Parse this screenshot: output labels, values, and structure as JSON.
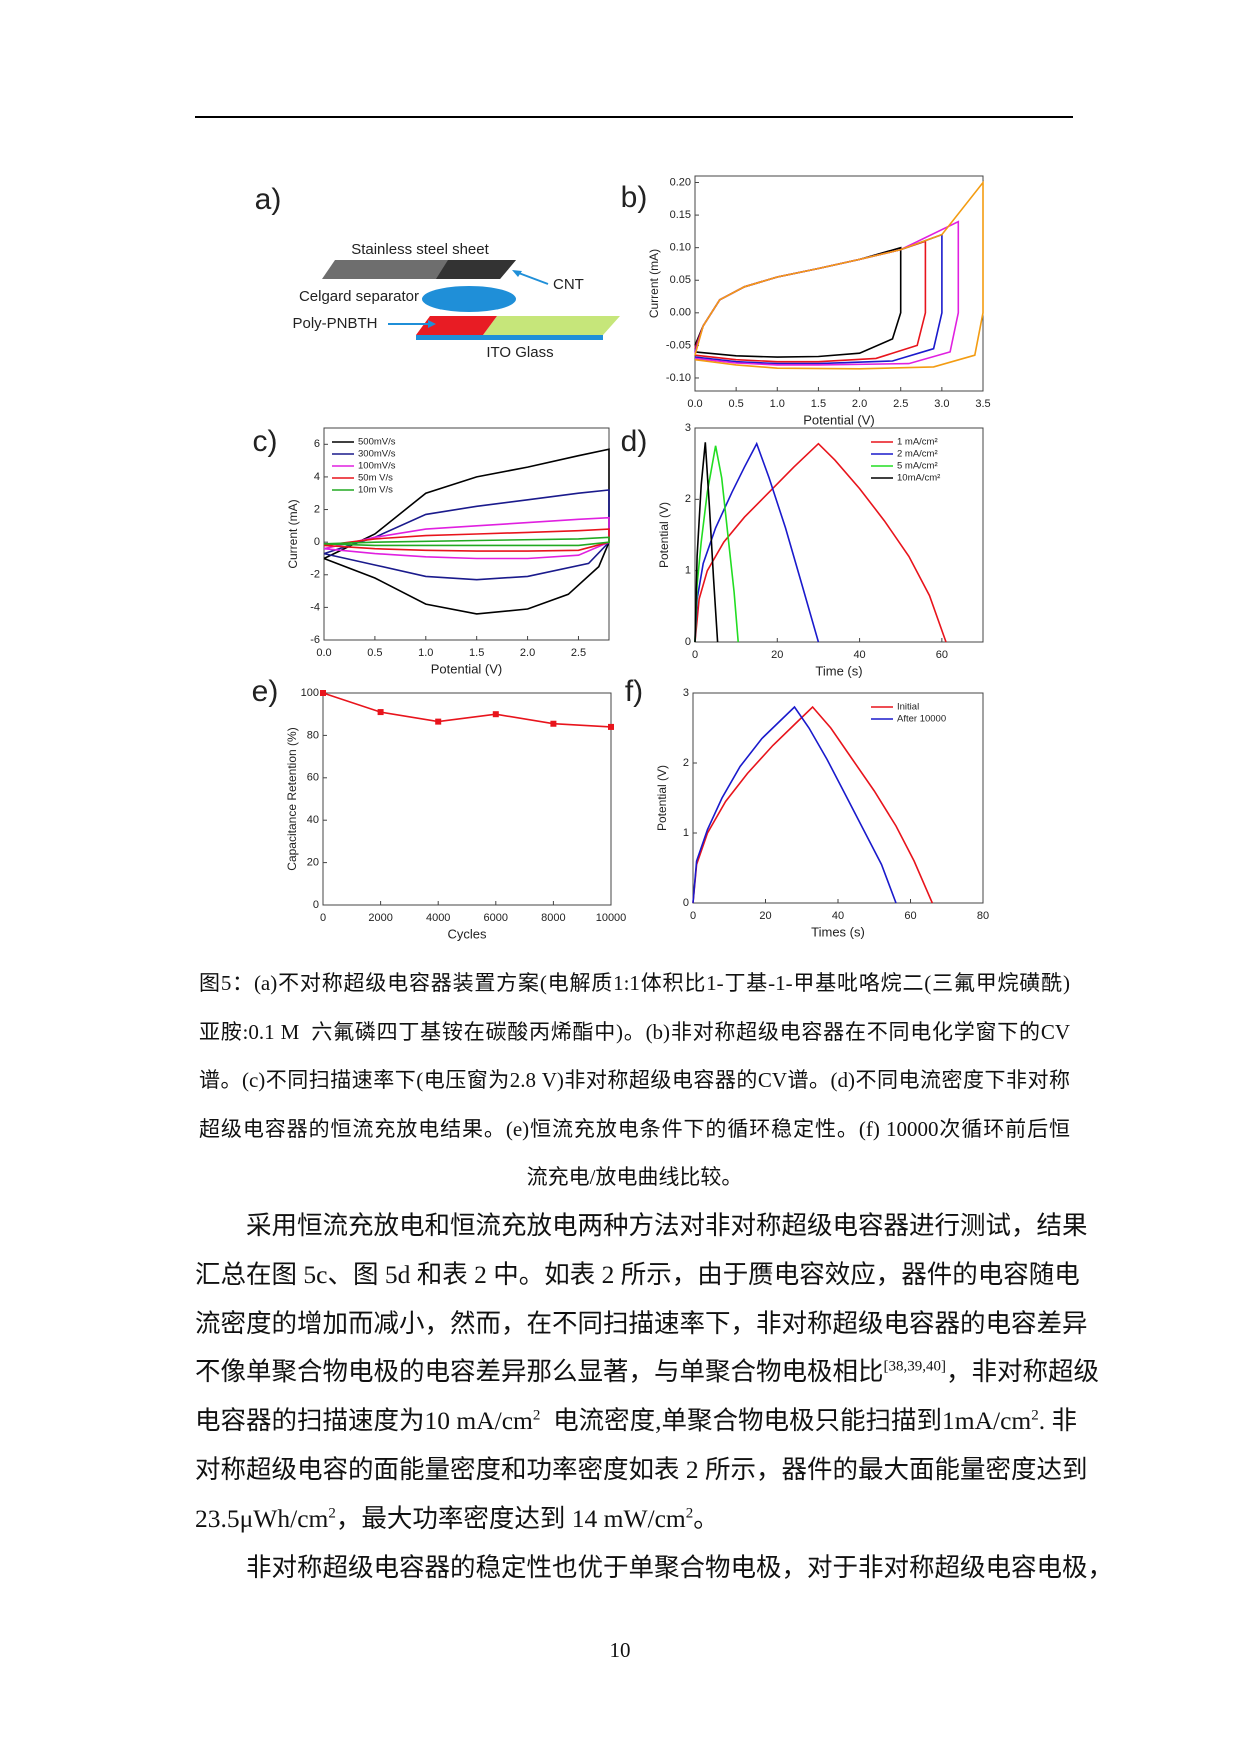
{
  "figure": {
    "panels": [
      {
        "label": "a)",
        "parts": [
          "Stainless steel sheet",
          "CNT",
          "Celgard separator",
          "Poly-PNBTH",
          "ITO Glass"
        ]
      },
      {
        "label": "b)",
        "type": "line",
        "xlabel": "Potential (V)",
        "ylabel": "Current (mA)",
        "xlim": [
          0,
          3.5
        ],
        "ylim": [
          -0.12,
          0.21
        ],
        "xticks": [
          {
            "value": 0,
            "label": "0.0"
          },
          0.5,
          {
            "value": 1,
            "label": "1.0"
          },
          1.5,
          {
            "value": 2,
            "label": "2.0"
          },
          2.5,
          {
            "value": 3,
            "label": "3.0"
          },
          3.5
        ],
        "yticks": [
          {
            "value": -0.1,
            "label": "-0.10"
          },
          {
            "value": -0.05,
            "label": "-0.05"
          },
          {
            "value": 0,
            "label": "0.00"
          },
          {
            "value": 0.05,
            "label": "0.05"
          },
          {
            "value": 0.1,
            "label": "0.10"
          },
          {
            "value": 0.15,
            "label": "0.15"
          },
          {
            "value": 0.2,
            "label": "0.20"
          }
        ],
        "series": [
          {
            "color": "#000000",
            "x": [
              0,
              0.1,
              0.3,
              0.6,
              1.0,
              1.5,
              2.0,
              2.5,
              2.5,
              2.4,
              2.0,
              1.5,
              1.0,
              0.5,
              0
            ],
            "values": [
              -0.05,
              -0.02,
              0.02,
              0.04,
              0.055,
              0.068,
              0.082,
              0.1,
              0.0,
              -0.04,
              -0.062,
              -0.067,
              -0.068,
              -0.066,
              -0.06
            ]
          },
          {
            "color": "#e8141c",
            "x": [
              0,
              0.1,
              0.3,
              0.6,
              1.0,
              1.5,
              2.0,
              2.5,
              2.8,
              2.8,
              2.7,
              2.2,
              1.5,
              1.0,
              0.5,
              0
            ],
            "values": [
              -0.055,
              -0.02,
              0.02,
              0.04,
              0.055,
              0.068,
              0.082,
              0.097,
              0.11,
              0.0,
              -0.05,
              -0.07,
              -0.075,
              -0.075,
              -0.072,
              -0.065
            ]
          },
          {
            "color": "#1a1acc",
            "x": [
              0,
              0.1,
              0.3,
              0.6,
              1.0,
              1.5,
              2.0,
              2.5,
              3.0,
              3.0,
              2.9,
              2.4,
              1.5,
              1.0,
              0.5,
              0
            ],
            "values": [
              -0.06,
              -0.02,
              0.02,
              0.04,
              0.055,
              0.068,
              0.082,
              0.097,
              0.12,
              0.0,
              -0.055,
              -0.074,
              -0.078,
              -0.078,
              -0.075,
              -0.068
            ]
          },
          {
            "color": "#e020e0",
            "x": [
              0,
              0.1,
              0.3,
              0.6,
              1.0,
              1.5,
              2.0,
              2.5,
              3.2,
              3.2,
              3.1,
              2.6,
              1.5,
              1.0,
              0.5,
              0
            ],
            "values": [
              -0.062,
              -0.02,
              0.02,
              0.04,
              0.055,
              0.068,
              0.082,
              0.097,
              0.14,
              0.0,
              -0.06,
              -0.078,
              -0.08,
              -0.08,
              -0.077,
              -0.07
            ]
          },
          {
            "color": "#f39c12",
            "x": [
              0,
              0.1,
              0.3,
              0.6,
              1.0,
              1.5,
              2.0,
              2.5,
              3.0,
              3.5,
              3.5,
              3.4,
              2.9,
              2.0,
              1.0,
              0.5,
              0
            ],
            "values": [
              -0.065,
              -0.02,
              0.02,
              0.04,
              0.055,
              0.068,
              0.082,
              0.097,
              0.12,
              0.2,
              0.0,
              -0.065,
              -0.083,
              -0.086,
              -0.085,
              -0.08,
              -0.072
            ]
          }
        ]
      },
      {
        "label": "c)",
        "type": "line",
        "xlabel": "Potential (V)",
        "ylabel": "Current  (mA)",
        "legend": "upper left",
        "xlim": [
          0,
          2.8
        ],
        "ylim": [
          -6,
          7
        ],
        "xticks": [
          {
            "value": 0,
            "label": "0.0"
          },
          0.5,
          {
            "value": 1,
            "label": "1.0"
          },
          1.5,
          {
            "value": 2,
            "label": "2.0"
          },
          2.5
        ],
        "yticks": [
          -6,
          -4,
          -2,
          0,
          2,
          4,
          6
        ],
        "series": [
          {
            "name": "500mV/s",
            "color": "#000000",
            "x": [
              0,
              0.5,
              1.0,
              1.5,
              2.0,
              2.5,
              2.8,
              2.8,
              2.7,
              2.4,
              2.0,
              1.5,
              1.0,
              0.5,
              0
            ],
            "values": [
              -1,
              0.5,
              3.0,
              4.0,
              4.6,
              5.3,
              5.7,
              0,
              -1.5,
              -3.2,
              -4.1,
              -4.4,
              -3.8,
              -2.2,
              -1
            ]
          },
          {
            "name": "300mV/s",
            "color": "#1a1a8c",
            "x": [
              0,
              0.5,
              1.0,
              1.5,
              2.0,
              2.5,
              2.8,
              2.8,
              2.6,
              2.0,
              1.5,
              1.0,
              0.5,
              0
            ],
            "values": [
              -0.7,
              0.3,
              1.7,
              2.2,
              2.6,
              3.0,
              3.2,
              0,
              -1.3,
              -2.1,
              -2.3,
              -2.1,
              -1.4,
              -0.7
            ]
          },
          {
            "name": "100mV/s",
            "color": "#e020e0",
            "x": [
              0,
              0.5,
              1.0,
              1.5,
              2.0,
              2.5,
              2.8,
              2.8,
              2.5,
              2.0,
              1.5,
              1.0,
              0.5,
              0
            ],
            "values": [
              -0.4,
              0.3,
              0.8,
              1.0,
              1.2,
              1.4,
              1.5,
              0,
              -0.8,
              -1.0,
              -1.0,
              -0.9,
              -0.7,
              -0.4
            ]
          },
          {
            "name": "50m V/s",
            "color": "#e8141c",
            "x": [
              0,
              0.5,
              1.0,
              1.5,
              2.0,
              2.5,
              2.8,
              2.8,
              2.5,
              2.0,
              1.5,
              1.0,
              0.5,
              0
            ],
            "values": [
              -0.2,
              0.2,
              0.4,
              0.5,
              0.6,
              0.7,
              0.8,
              0,
              -0.5,
              -0.55,
              -0.55,
              -0.5,
              -0.4,
              -0.2
            ]
          },
          {
            "name": "10m V/s",
            "color": "#22aa22",
            "x": [
              0,
              0.5,
              1.5,
              2.5,
              2.8,
              2.8,
              2.5,
              1.5,
              0.5,
              0
            ],
            "values": [
              -0.1,
              0.0,
              0.1,
              0.2,
              0.3,
              0,
              -0.2,
              -0.2,
              -0.2,
              -0.1
            ]
          }
        ]
      },
      {
        "label": "d)",
        "type": "line",
        "xlabel": "Time (s)",
        "ylabel": "Potential (V)",
        "legend": "upper right",
        "xlim": [
          0,
          70
        ],
        "ylim": [
          0,
          3
        ],
        "xticks": [
          0,
          20,
          40,
          60
        ],
        "yticks": [
          0,
          1,
          2,
          3
        ],
        "series": [
          {
            "name": "1 mA/cm²",
            "color": "#e8141c",
            "x": [
              0,
              1,
              3,
              7,
              12,
              18,
              24,
              30,
              34,
              40,
              46,
              52,
              57,
              61
            ],
            "values": [
              0,
              0.6,
              1.0,
              1.4,
              1.75,
              2.1,
              2.45,
              2.78,
              2.55,
              2.15,
              1.7,
              1.2,
              0.65,
              0
            ]
          },
          {
            "name": "2 mA/cm²",
            "color": "#1a1acc",
            "x": [
              0,
              0.5,
              2,
              5,
              9,
              12,
              15,
              18,
              22,
              26,
              30
            ],
            "values": [
              0,
              0.6,
              1.1,
              1.6,
              2.1,
              2.45,
              2.78,
              2.3,
              1.6,
              0.8,
              0
            ]
          },
          {
            "name": "5 mA/cm²",
            "color": "#22dd22",
            "x": [
              0,
              0.5,
              1.5,
              3,
              5,
              6.5,
              8,
              9.5,
              10.5
            ],
            "values": [
              0,
              0.8,
              1.4,
              2.1,
              2.75,
              2.3,
              1.5,
              0.7,
              0
            ]
          },
          {
            "name": "10mA/cm²",
            "color": "#000000",
            "x": [
              0,
              0.5,
              1.5,
              2.5,
              3.5,
              4.5,
              5.5
            ],
            "values": [
              0,
              1.2,
              2.2,
              2.8,
              1.9,
              0.9,
              0
            ]
          }
        ]
      },
      {
        "label": "e)",
        "type": "line",
        "markers": true,
        "xlabel": "Cycles",
        "ylabel": "Capacitance Retention (%)",
        "xlim": [
          0,
          10000
        ],
        "ylim": [
          0,
          100
        ],
        "xticks": [
          0,
          2000,
          4000,
          6000,
          8000,
          10000
        ],
        "yticks": [
          0,
          20,
          40,
          60,
          80,
          100
        ],
        "series": [
          {
            "color": "#e8141c",
            "x": [
              0,
              2000,
              4000,
              6000,
              8000,
              10000
            ],
            "values": [
              100,
              91,
              86.5,
              90,
              85.5,
              84
            ]
          }
        ]
      },
      {
        "label": "f)",
        "type": "line",
        "xlabel": "Times (s)",
        "ylabel": "Potential (V)",
        "legend": "upper right",
        "xlim": [
          0,
          80
        ],
        "ylim": [
          0,
          3
        ],
        "xticks": [
          0,
          20,
          40,
          60,
          80
        ],
        "yticks": [
          0,
          1,
          2,
          3
        ],
        "series": [
          {
            "name": "Initial",
            "color": "#e8141c",
            "x": [
              0,
              1,
              4,
              9,
              15,
              22,
              28,
              33,
              38,
              44,
              50,
              56,
              61,
              66
            ],
            "values": [
              0,
              0.55,
              1.0,
              1.45,
              1.85,
              2.25,
              2.55,
              2.8,
              2.5,
              2.05,
              1.6,
              1.1,
              0.6,
              0
            ]
          },
          {
            "name": "After 10000",
            "color": "#1a1acc",
            "x": [
              0,
              1,
              4,
              8,
              13,
              19,
              24,
              28,
              32,
              37,
              42,
              47,
              52,
              56
            ],
            "values": [
              0,
              0.6,
              1.05,
              1.5,
              1.95,
              2.35,
              2.6,
              2.8,
              2.5,
              2.05,
              1.55,
              1.05,
              0.55,
              0
            ]
          }
        ]
      }
    ]
  },
  "caption": [
    "图5：(a)不对称超级电容器装置方案(电解质1:1体积比1-丁基-1-甲基吡咯烷二(三氟甲烷磺酰)",
    "亚胺:0.1 M  六氟磷四丁基铵在碳酸丙烯酯中)。(b)非对称超级电容器在不同电化学窗下的CV",
    "谱。(c)不同扫描速率下(电压窗为2.8 V)非对称超级电容器的CV谱。(d)不同电流密度下非对称",
    "超级电容器的恒流充放电结果。(e)恒流充放电条件下的循环稳定性。(f) 10000次循环前后恒",
    "流充电/放电曲线比较。"
  ],
  "paragraphs": [
    [
      [
        {
          "text": "采用恒流充放电和恒流充放电两种方法对非对称超级电容器进行测试，结果"
        }
      ],
      [
        {
          "text": "汇总在图 5c、图 5d 和表 2 中。如表 2 所示，由于赝电容效应，器件的电容随电"
        }
      ],
      [
        {
          "text": "流密度的增加而减小，然而，在不同扫描速率下，非对称超级电容器的电容差异"
        }
      ],
      [
        {
          "text": "不像单聚合物电极的电容差异那么显著，与单聚合物电极相比"
        },
        {
          "sup": "[38,39,40]"
        },
        {
          "text": "，非对称超级"
        }
      ],
      [
        {
          "text": "电容器的扫描速度为10 mA/cm"
        },
        {
          "sup": "2"
        },
        {
          "text": "  电流密度,单聚合物电极只能扫描到1mA/cm"
        },
        {
          "sup": "2"
        },
        {
          "text": ". 非"
        }
      ],
      [
        {
          "text": "对称超级电容的面能量密度和功率密度如表 2 所示，器件的最大面能量密度达到"
        }
      ],
      [
        {
          "text": "23.5μWh/cm"
        },
        {
          "sup": "2"
        },
        {
          "text": "，最大功率密度达到 14 mW/cm"
        },
        {
          "sup": "2"
        },
        {
          "text": "。"
        }
      ]
    ],
    [
      [
        {
          "text": "非对称超级电容器的稳定性也优于单聚合物电极，对于非对称超级电容电极，"
        }
      ]
    ]
  ],
  "page_number": "10"
}
